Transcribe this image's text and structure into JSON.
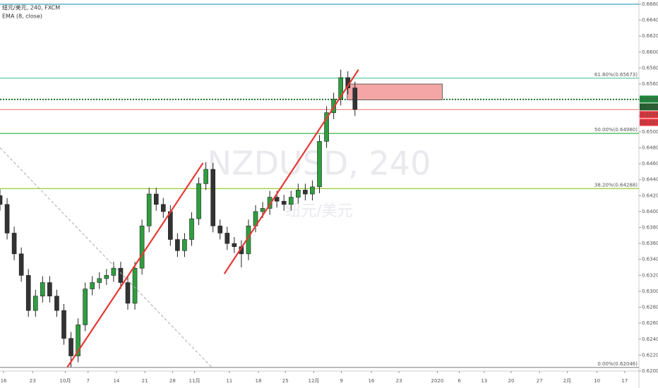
{
  "chart_data": {
    "type": "candlestick",
    "title": "纽元/美元, 240, FXCM",
    "indicator": "EMA (8, close)",
    "watermark": "NZDUSD, 240",
    "watermark_sub": "纽元/美元",
    "bull_color": "#2e9e3f",
    "bear_color": "#333333",
    "open": [
      0.642,
      0.6409,
      0.6373,
      0.6347,
      0.632,
      0.6276,
      0.6294,
      0.6311,
      0.6294,
      0.6276,
      0.6241,
      0.6219,
      0.6258,
      0.6303,
      0.6311,
      0.6316,
      0.632,
      0.6329,
      0.6311,
      0.6285,
      0.6329,
      0.6382,
      0.6422,
      0.6409,
      0.64,
      0.6365,
      0.6351,
      0.6365,
      0.6391,
      0.6435,
      0.6453,
      0.6382,
      0.6373,
      0.636,
      0.6356,
      0.6347,
      0.6382,
      0.64,
      0.6404,
      0.6418,
      0.6413,
      0.6409,
      0.6418,
      0.6427,
      0.6422,
      0.6431,
      0.6488,
      0.6524,
      0.6541,
      0.6568,
      0.6555
    ],
    "high": [
      0.6428,
      0.6417,
      0.6381,
      0.6355,
      0.6328,
      0.6302,
      0.6319,
      0.6319,
      0.6302,
      0.6284,
      0.6249,
      0.6266,
      0.6311,
      0.6319,
      0.6324,
      0.6328,
      0.6337,
      0.6337,
      0.6319,
      0.6337,
      0.639,
      0.643,
      0.643,
      0.6417,
      0.6408,
      0.6373,
      0.6373,
      0.6399,
      0.6443,
      0.6462,
      0.6461,
      0.639,
      0.6381,
      0.6368,
      0.6364,
      0.639,
      0.6408,
      0.6412,
      0.6426,
      0.6426,
      0.6421,
      0.6426,
      0.6435,
      0.6435,
      0.6439,
      0.6496,
      0.6532,
      0.6549,
      0.6578,
      0.6576,
      0.6563
    ],
    "low": [
      0.6401,
      0.6365,
      0.6339,
      0.6312,
      0.6268,
      0.6268,
      0.6286,
      0.6286,
      0.6268,
      0.6233,
      0.6205,
      0.6211,
      0.625,
      0.6295,
      0.6303,
      0.6308,
      0.6312,
      0.6303,
      0.6277,
      0.6277,
      0.6321,
      0.6374,
      0.6401,
      0.6392,
      0.6357,
      0.6343,
      0.6343,
      0.6357,
      0.6383,
      0.6427,
      0.6374,
      0.6365,
      0.6352,
      0.6348,
      0.633,
      0.6339,
      0.6374,
      0.6392,
      0.6396,
      0.6405,
      0.6401,
      0.6401,
      0.641,
      0.6414,
      0.6414,
      0.6423,
      0.648,
      0.6516,
      0.6533,
      0.6547,
      0.652
    ],
    "close": [
      0.6409,
      0.6373,
      0.6347,
      0.632,
      0.6276,
      0.6294,
      0.6311,
      0.6294,
      0.6276,
      0.6241,
      0.6219,
      0.6258,
      0.6303,
      0.6311,
      0.6316,
      0.632,
      0.6329,
      0.6311,
      0.6285,
      0.6329,
      0.6382,
      0.6422,
      0.6409,
      0.64,
      0.6365,
      0.6351,
      0.6365,
      0.6391,
      0.6435,
      0.6453,
      0.6382,
      0.6373,
      0.636,
      0.6356,
      0.6347,
      0.6382,
      0.64,
      0.6404,
      0.6418,
      0.6413,
      0.6409,
      0.6418,
      0.6427,
      0.6422,
      0.6431,
      0.6488,
      0.6524,
      0.6541,
      0.6568,
      0.6555,
      0.6528
    ],
    "xlim": [
      0,
      90
    ],
    "xticks": [
      {
        "value": 0.5,
        "label": "16"
      },
      {
        "value": 4.6,
        "label": "23"
      },
      {
        "value": 9.2,
        "label": "10月"
      },
      {
        "value": 12.4,
        "label": "7"
      },
      {
        "value": 16.4,
        "label": "14"
      },
      {
        "value": 20.4,
        "label": "21"
      },
      {
        "value": 24.3,
        "label": "28"
      },
      {
        "value": 27.4,
        "label": "11月"
      },
      {
        "value": 32.3,
        "label": "11"
      },
      {
        "value": 36.4,
        "label": "18"
      },
      {
        "value": 40.2,
        "label": "25"
      },
      {
        "value": 44.2,
        "label": "12月"
      },
      {
        "value": 48.1,
        "label": "9"
      },
      {
        "value": 52.3,
        "label": "16"
      },
      {
        "value": 56.2,
        "label": "23"
      },
      {
        "value": 61.6,
        "label": "2020"
      },
      {
        "value": 64.7,
        "label": "6"
      },
      {
        "value": 68.2,
        "label": "13"
      },
      {
        "value": 72,
        "label": "20"
      },
      {
        "value": 76,
        "label": "27"
      },
      {
        "value": 79.9,
        "label": "2月"
      },
      {
        "value": 84.1,
        "label": "10"
      },
      {
        "value": 88,
        "label": "17"
      }
    ],
    "ylim": [
      0.62,
      0.666
    ],
    "yticks": [
      {
        "value": 0.62,
        "label": "0.62000"
      },
      {
        "value": 0.622,
        "label": "0.62200"
      },
      {
        "value": 0.624,
        "label": "0.62400"
      },
      {
        "value": 0.626,
        "label": "0.62600"
      },
      {
        "value": 0.628,
        "label": "0.62800"
      },
      {
        "value": 0.63,
        "label": "0.63000"
      },
      {
        "value": 0.632,
        "label": "0.63200"
      },
      {
        "value": 0.634,
        "label": "0.63400"
      },
      {
        "value": 0.636,
        "label": "0.63600"
      },
      {
        "value": 0.638,
        "label": "0.63800"
      },
      {
        "value": 0.64,
        "label": "0.64000"
      },
      {
        "value": 0.642,
        "label": "0.64200"
      },
      {
        "value": 0.644,
        "label": "0.64400"
      },
      {
        "value": 0.646,
        "label": "0.64600"
      },
      {
        "value": 0.648,
        "label": "0.64800"
      },
      {
        "value": 0.65,
        "label": "0.65000"
      },
      {
        "value": 0.652,
        "label": "0.65200"
      },
      {
        "value": 0.654,
        "label": "0.65400"
      },
      {
        "value": 0.656,
        "label": "0.65600"
      },
      {
        "value": 0.658,
        "label": "0.65800"
      },
      {
        "value": 0.66,
        "label": "0.66000"
      },
      {
        "value": 0.662,
        "label": "0.66200"
      },
      {
        "value": 0.664,
        "label": "0.66400"
      },
      {
        "value": 0.666,
        "label": "0.66600"
      }
    ],
    "levels": [
      {
        "value": 0.666,
        "color": "#3aa6b9",
        "dash": "solid"
      },
      {
        "value": 0.65673,
        "color": "#4fc3a0",
        "dash": "solid",
        "label": "61.80%(0.65673)"
      },
      {
        "value": 0.65406,
        "color": "#1b7a2e",
        "dash": "dotted"
      },
      {
        "value": 0.65279,
        "color": "#f08080",
        "dash": "solid"
      },
      {
        "value": 0.6498,
        "color": "#3cb44b",
        "dash": "solid",
        "label": "50.00%(0.64980)"
      },
      {
        "value": 0.64288,
        "color": "#9acd32",
        "dash": "solid",
        "label": "38.20%(0.64288)"
      },
      {
        "value": 0.62046,
        "color": "#888888",
        "dash": "solid",
        "label": "0.00%(0.62046)"
      }
    ],
    "trendlines": [
      {
        "x": [
          9.5,
          28.6
        ],
        "y": [
          0.6205,
          0.6461
        ],
        "color": "#e53935",
        "dash": "solid"
      },
      {
        "x": [
          31.6,
          50.5
        ],
        "y": [
          0.6322,
          0.6578
        ],
        "color": "#e53935",
        "dash": "solid"
      },
      {
        "x": [
          0,
          29.8
        ],
        "y": [
          0.648,
          0.6205
        ],
        "color": "#aaaaaa",
        "dash": "dashed"
      }
    ],
    "zone": {
      "x": [
        48.9,
        62.3
      ],
      "y": [
        0.654,
        0.656
      ],
      "color": "#f4a6a6"
    },
    "price_tags": [
      {
        "value": 0.65406,
        "color": "#1b8a3a"
      },
      {
        "value": 0.65386,
        "color": "#1f5f2b"
      },
      {
        "value": 0.65279,
        "color": "#e5323a"
      }
    ],
    "countdown": {
      "text": "01:15:51",
      "color": "#e5323a"
    }
  }
}
